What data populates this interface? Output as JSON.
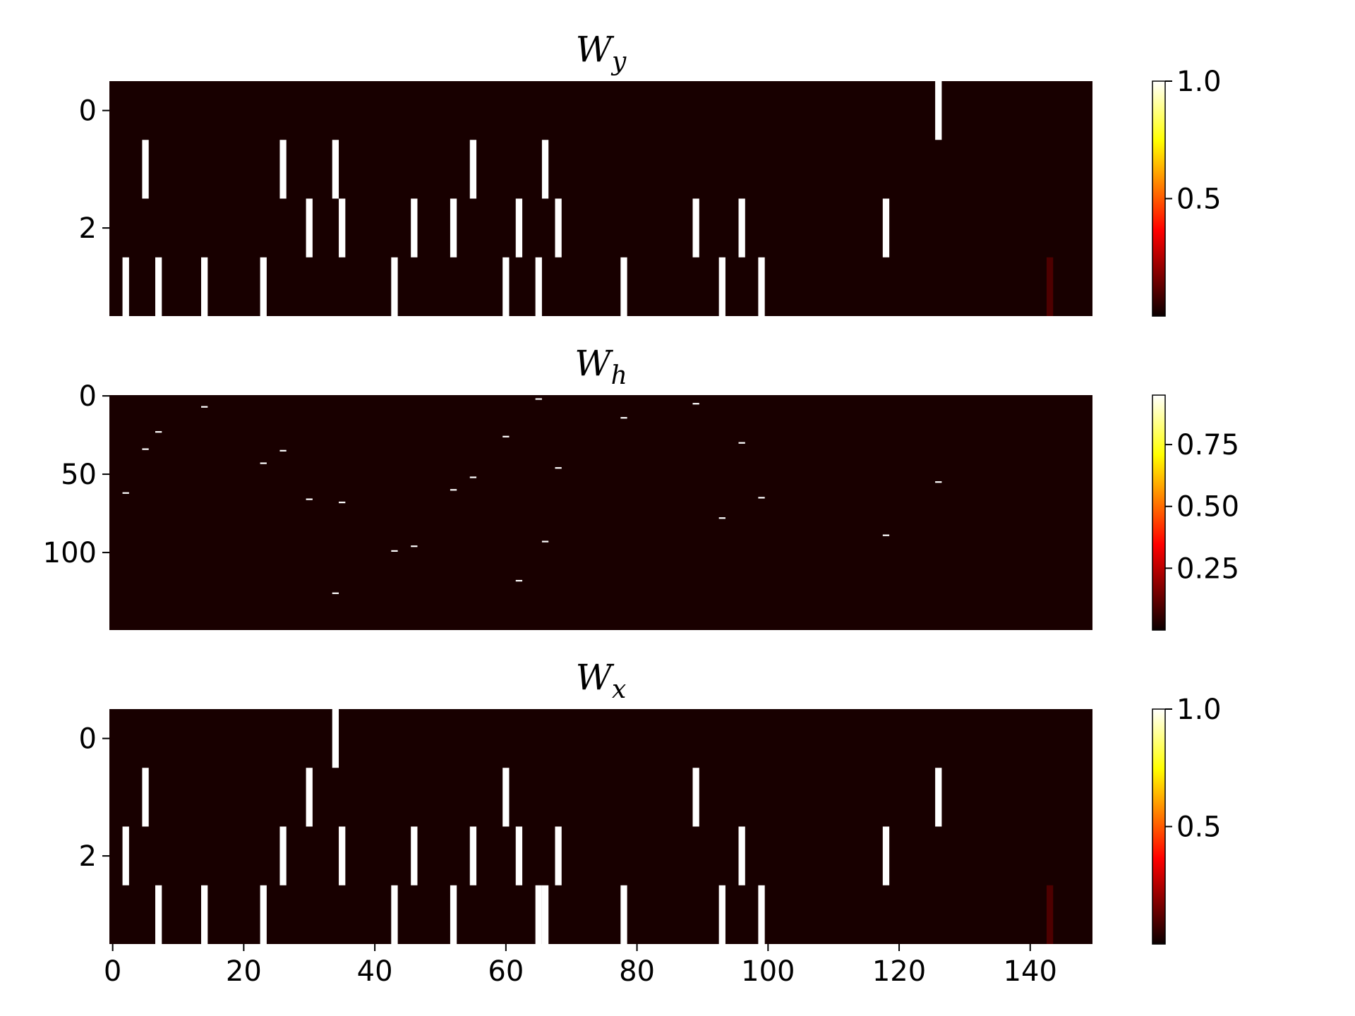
{
  "chart_data": [
    {
      "type": "heatmap",
      "title": {
        "base": "W",
        "sub": "y"
      },
      "rows": 4,
      "cols": 150,
      "xlim": [
        -0.5,
        149.5
      ],
      "ylim": [
        3.5,
        -0.5
      ],
      "yticks": [
        0,
        2
      ],
      "show_xticks": false,
      "background_value": 0.02,
      "cells": [
        {
          "row": 0,
          "col": 126,
          "value": 1.0
        },
        {
          "row": 1,
          "col": 5,
          "value": 1.0
        },
        {
          "row": 1,
          "col": 26,
          "value": 1.0
        },
        {
          "row": 1,
          "col": 34,
          "value": 1.0
        },
        {
          "row": 1,
          "col": 55,
          "value": 1.0
        },
        {
          "row": 1,
          "col": 66,
          "value": 1.0
        },
        {
          "row": 2,
          "col": 30,
          "value": 1.0
        },
        {
          "row": 2,
          "col": 35,
          "value": 1.0
        },
        {
          "row": 2,
          "col": 46,
          "value": 1.0
        },
        {
          "row": 2,
          "col": 52,
          "value": 1.0
        },
        {
          "row": 2,
          "col": 62,
          "value": 1.0
        },
        {
          "row": 2,
          "col": 68,
          "value": 1.0
        },
        {
          "row": 2,
          "col": 89,
          "value": 1.0
        },
        {
          "row": 2,
          "col": 96,
          "value": 1.0
        },
        {
          "row": 2,
          "col": 118,
          "value": 1.0
        },
        {
          "row": 3,
          "col": 2,
          "value": 1.0
        },
        {
          "row": 3,
          "col": 7,
          "value": 1.0
        },
        {
          "row": 3,
          "col": 14,
          "value": 1.0
        },
        {
          "row": 3,
          "col": 23,
          "value": 1.0
        },
        {
          "row": 3,
          "col": 43,
          "value": 1.0
        },
        {
          "row": 3,
          "col": 60,
          "value": 1.0
        },
        {
          "row": 3,
          "col": 65,
          "value": 1.0
        },
        {
          "row": 3,
          "col": 78,
          "value": 1.0
        },
        {
          "row": 3,
          "col": 93,
          "value": 1.0
        },
        {
          "row": 3,
          "col": 99,
          "value": 1.0
        },
        {
          "row": 3,
          "col": 143,
          "value": 0.1
        }
      ],
      "colorbar": {
        "cmap": "hot",
        "vmin": 0.0,
        "vmax": 1.0,
        "ticks": [
          0.5,
          1.0
        ],
        "tick_labels": [
          "0.5",
          "1.0"
        ]
      }
    },
    {
      "type": "heatmap",
      "title": {
        "base": "W",
        "sub": "h"
      },
      "rows": 150,
      "cols": 150,
      "xlim": [
        -0.5,
        149.5
      ],
      "ylim": [
        149.5,
        -0.5
      ],
      "yticks": [
        0,
        50,
        100
      ],
      "show_xticks": false,
      "background_value": 0.02,
      "cells": [
        {
          "row": 2,
          "col": 65,
          "value": 0.95
        },
        {
          "row": 5,
          "col": 89,
          "value": 0.95
        },
        {
          "row": 7,
          "col": 14,
          "value": 0.95
        },
        {
          "row": 14,
          "col": 78,
          "value": 0.95
        },
        {
          "row": 23,
          "col": 7,
          "value": 0.95
        },
        {
          "row": 26,
          "col": 60,
          "value": 0.95
        },
        {
          "row": 30,
          "col": 96,
          "value": 0.95
        },
        {
          "row": 34,
          "col": 5,
          "value": 0.95
        },
        {
          "row": 35,
          "col": 26,
          "value": 0.95
        },
        {
          "row": 43,
          "col": 23,
          "value": 0.95
        },
        {
          "row": 46,
          "col": 68,
          "value": 0.95
        },
        {
          "row": 52,
          "col": 55,
          "value": 0.95
        },
        {
          "row": 55,
          "col": 126,
          "value": 0.95
        },
        {
          "row": 60,
          "col": 52,
          "value": 0.95
        },
        {
          "row": 62,
          "col": 2,
          "value": 0.95
        },
        {
          "row": 65,
          "col": 99,
          "value": 0.95
        },
        {
          "row": 66,
          "col": 30,
          "value": 0.95
        },
        {
          "row": 68,
          "col": 35,
          "value": 0.95
        },
        {
          "row": 78,
          "col": 93,
          "value": 0.95
        },
        {
          "row": 89,
          "col": 118,
          "value": 0.95
        },
        {
          "row": 93,
          "col": 66,
          "value": 0.95
        },
        {
          "row": 96,
          "col": 46,
          "value": 0.95
        },
        {
          "row": 99,
          "col": 43,
          "value": 0.95
        },
        {
          "row": 118,
          "col": 62,
          "value": 0.95
        },
        {
          "row": 126,
          "col": 34,
          "value": 0.95
        }
      ],
      "colorbar": {
        "cmap": "hot",
        "vmin": 0.0,
        "vmax": 0.95,
        "ticks": [
          0.25,
          0.5,
          0.75
        ],
        "tick_labels": [
          "0.25",
          "0.50",
          "0.75"
        ]
      }
    },
    {
      "type": "heatmap",
      "title": {
        "base": "W",
        "sub": "x"
      },
      "rows": 4,
      "cols": 150,
      "xlim": [
        -0.5,
        149.5
      ],
      "ylim": [
        3.5,
        -0.5
      ],
      "yticks": [
        0,
        2
      ],
      "show_xticks": true,
      "xticks": [
        0,
        20,
        40,
        60,
        80,
        100,
        120,
        140
      ],
      "background_value": 0.02,
      "cells": [
        {
          "row": 0,
          "col": 34,
          "value": 1.0
        },
        {
          "row": 1,
          "col": 5,
          "value": 1.0
        },
        {
          "row": 1,
          "col": 30,
          "value": 1.0
        },
        {
          "row": 1,
          "col": 60,
          "value": 1.0
        },
        {
          "row": 1,
          "col": 89,
          "value": 1.0
        },
        {
          "row": 1,
          "col": 126,
          "value": 1.0
        },
        {
          "row": 2,
          "col": 2,
          "value": 1.0
        },
        {
          "row": 2,
          "col": 26,
          "value": 1.0
        },
        {
          "row": 2,
          "col": 35,
          "value": 1.0
        },
        {
          "row": 2,
          "col": 46,
          "value": 1.0
        },
        {
          "row": 2,
          "col": 55,
          "value": 1.0
        },
        {
          "row": 2,
          "col": 62,
          "value": 1.0
        },
        {
          "row": 2,
          "col": 68,
          "value": 1.0
        },
        {
          "row": 2,
          "col": 96,
          "value": 1.0
        },
        {
          "row": 2,
          "col": 118,
          "value": 1.0
        },
        {
          "row": 3,
          "col": 7,
          "value": 1.0
        },
        {
          "row": 3,
          "col": 14,
          "value": 1.0
        },
        {
          "row": 3,
          "col": 23,
          "value": 1.0
        },
        {
          "row": 3,
          "col": 43,
          "value": 1.0
        },
        {
          "row": 3,
          "col": 52,
          "value": 1.0
        },
        {
          "row": 3,
          "col": 65,
          "value": 1.0
        },
        {
          "row": 3,
          "col": 66,
          "value": 1.0
        },
        {
          "row": 3,
          "col": 78,
          "value": 1.0
        },
        {
          "row": 3,
          "col": 93,
          "value": 1.0
        },
        {
          "row": 3,
          "col": 99,
          "value": 1.0
        },
        {
          "row": 3,
          "col": 143,
          "value": 0.1
        }
      ],
      "colorbar": {
        "cmap": "hot",
        "vmin": 0.0,
        "vmax": 1.0,
        "ticks": [
          0.5,
          1.0
        ],
        "tick_labels": [
          "0.5",
          "1.0"
        ]
      }
    }
  ]
}
